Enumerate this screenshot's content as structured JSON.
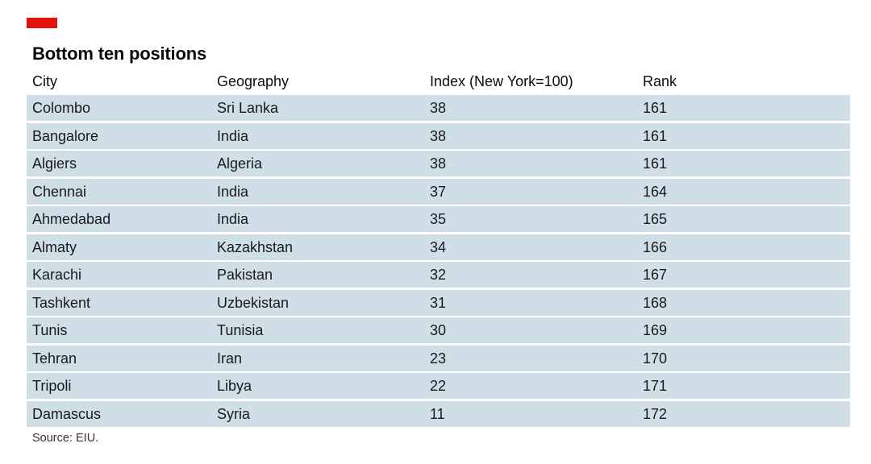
{
  "title": "Bottom ten positions",
  "source": "Source: EIU.",
  "colors": {
    "accent": "#e3120b",
    "row_background": "#cfdee7"
  },
  "chart_data": {
    "type": "table",
    "title": "Bottom ten positions",
    "columns": [
      "City",
      "Geography",
      "Index (New York=100)",
      "Rank"
    ],
    "rows": [
      [
        "Colombo",
        "Sri Lanka",
        "38",
        "161"
      ],
      [
        "Bangalore",
        "India",
        "38",
        "161"
      ],
      [
        "Algiers",
        "Algeria",
        "38",
        "161"
      ],
      [
        "Chennai",
        "India",
        "37",
        "164"
      ],
      [
        "Ahmedabad",
        "India",
        "35",
        "165"
      ],
      [
        "Almaty",
        "Kazakhstan",
        "34",
        "166"
      ],
      [
        "Karachi",
        "Pakistan",
        "32",
        "167"
      ],
      [
        "Tashkent",
        "Uzbekistan",
        "31",
        "168"
      ],
      [
        "Tunis",
        "Tunisia",
        "30",
        "169"
      ],
      [
        "Tehran",
        "Iran",
        "23",
        "170"
      ],
      [
        "Tripoli",
        "Libya",
        "22",
        "171"
      ],
      [
        "Damascus",
        "Syria",
        "11",
        "172"
      ]
    ]
  }
}
